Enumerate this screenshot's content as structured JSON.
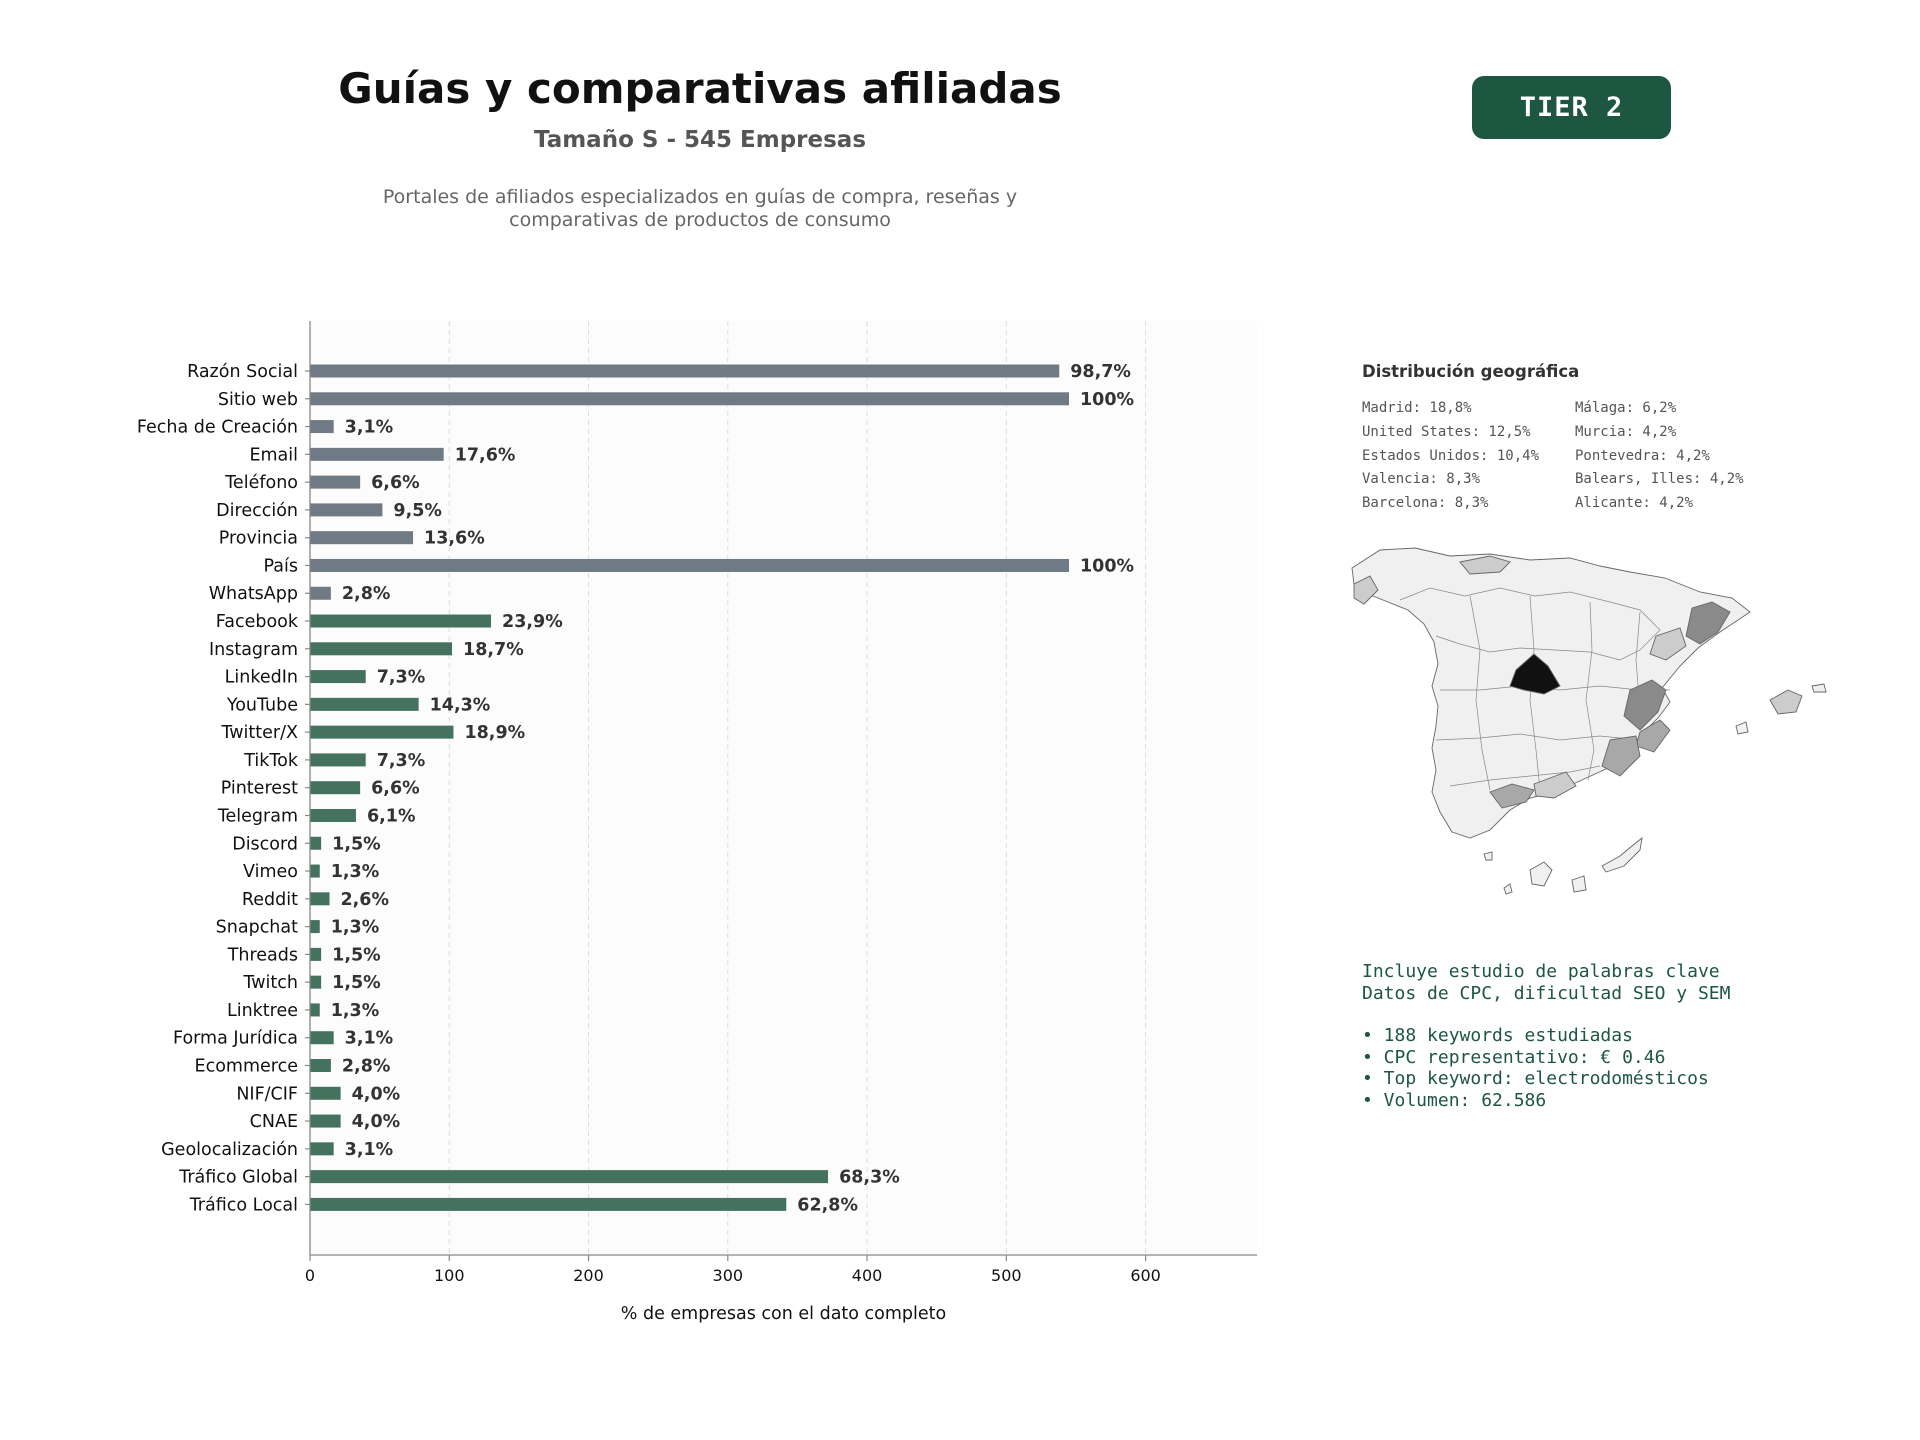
{
  "header": {
    "title": "Guías y comparativas afiliadas",
    "subtitle": "Tamaño S - 545 Empresas",
    "description": "Portales de afiliados especializados en guías de compra, reseñas y comparativas de productos de consumo",
    "tier_badge": "TIER 2"
  },
  "chart_data": {
    "type": "bar",
    "orientation": "horizontal",
    "categories": [
      "Razón Social",
      "Sitio web",
      "Fecha de Creación",
      "Email",
      "Teléfono",
      "Dirección",
      "Provincia",
      "País",
      "WhatsApp",
      "Facebook",
      "Instagram",
      "LinkedIn",
      "YouTube",
      "Twitter/X",
      "TikTok",
      "Pinterest",
      "Telegram",
      "Discord",
      "Vimeo",
      "Reddit",
      "Snapchat",
      "Threads",
      "Twitch",
      "Linktree",
      "Forma Jurídica",
      "Ecommerce",
      "NIF/CIF",
      "CNAE",
      "Geolocalización",
      "Tráfico Global",
      "Tráfico Local"
    ],
    "values": [
      538,
      545,
      17,
      96,
      36,
      52,
      74,
      545,
      15,
      130,
      102,
      40,
      78,
      103,
      40,
      36,
      33,
      8,
      7,
      14,
      7,
      8,
      8,
      7,
      17,
      15,
      22,
      22,
      17,
      372,
      342
    ],
    "value_labels": [
      "98,7%",
      "100%",
      "3,1%",
      "17,6%",
      "6,6%",
      "9,5%",
      "13,6%",
      "100%",
      "2,8%",
      "23,9%",
      "18,7%",
      "7,3%",
      "14,3%",
      "18,9%",
      "7,3%",
      "6,6%",
      "6,1%",
      "1,5%",
      "1,3%",
      "2,6%",
      "1,3%",
      "1,5%",
      "1,5%",
      "1,3%",
      "3,1%",
      "2,8%",
      "4,0%",
      "4,0%",
      "3,1%",
      "68,3%",
      "62,8%"
    ],
    "colors": [
      "#6f7a85",
      "#6f7a85",
      "#6f7a85",
      "#6f7a85",
      "#6f7a85",
      "#6f7a85",
      "#6f7a85",
      "#6f7a85",
      "#6f7a85",
      "#45725f",
      "#45725f",
      "#45725f",
      "#45725f",
      "#45725f",
      "#45725f",
      "#45725f",
      "#45725f",
      "#45725f",
      "#45725f",
      "#45725f",
      "#45725f",
      "#45725f",
      "#45725f",
      "#45725f",
      "#45725f",
      "#45725f",
      "#45725f",
      "#45725f",
      "#45725f",
      "#45725f",
      "#45725f"
    ],
    "xlabel": "% de empresas con el dato completo",
    "ylabel": "",
    "xlim": [
      0,
      680
    ],
    "xticks": [
      0,
      100,
      200,
      300,
      400,
      500,
      600
    ],
    "grid": "vertical dashed",
    "plot_background": "#fcfcfc"
  },
  "geo": {
    "title": "Distribución geográfica",
    "items": [
      "Madrid: 18,8%",
      "Málaga: 6,2%",
      "United States: 12,5%",
      "Murcia: 4,2%",
      "Estados Unidos: 10,4%",
      "Pontevedra: 4,2%",
      "Valencia: 8,3%",
      "Balears, Illes: 4,2%",
      "Barcelona: 8,3%",
      "Alicante: 4,2%"
    ],
    "map_colors": {
      "none": "#f0f0f0",
      "low": "#cccccc",
      "mid": "#a8a8a8",
      "high": "#8a8a8a",
      "max": "#111111"
    }
  },
  "keywords": {
    "line1": "Incluye estudio de palabras clave",
    "line2": "Datos de CPC, dificultad SEO y SEM",
    "bullets": [
      "• 188 keywords estudiadas",
      "• CPC representativo: € 0.46",
      "• Top keyword: electrodomésticos",
      "• Volumen: 62.586"
    ]
  }
}
